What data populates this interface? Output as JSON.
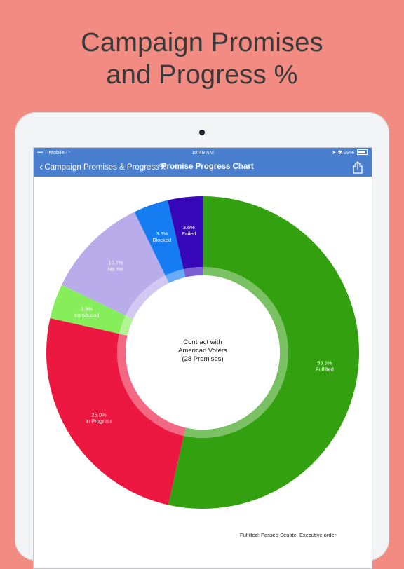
{
  "headline": {
    "line1": "Campaign Promises",
    "line2": "and Progress %"
  },
  "status_bar": {
    "carrier": "T-Mobile",
    "time": "10:49 AM",
    "battery": "99%"
  },
  "nav": {
    "back_label": "Campaign Promises & Progress%",
    "title": "Promise Progress Chart"
  },
  "chart_data": {
    "type": "pie",
    "center_label": [
      "Contract with",
      "American Voters",
      "(28 Promises)"
    ],
    "slices": [
      {
        "name": "Fulfilled",
        "value": 53.6,
        "label": "53.6%",
        "color": "#33A00F"
      },
      {
        "name": "In Progress",
        "value": 25.0,
        "label": "25.0%",
        "color": "#EC1841"
      },
      {
        "name": "Introduced",
        "value": 3.6,
        "label": "3.6%",
        "color": "#86EE5A"
      },
      {
        "name": "No Yet",
        "value": 10.7,
        "label": "10.7%",
        "color": "#B9ACEA"
      },
      {
        "name": "Blocked",
        "value": 3.6,
        "label": "3.6%",
        "color": "#157CF2"
      },
      {
        "name": "Failed",
        "value": 3.6,
        "label": "3.6%",
        "color": "#3707B9"
      }
    ]
  },
  "footnote": "Fulfilled: Passed Senate, Executive order"
}
